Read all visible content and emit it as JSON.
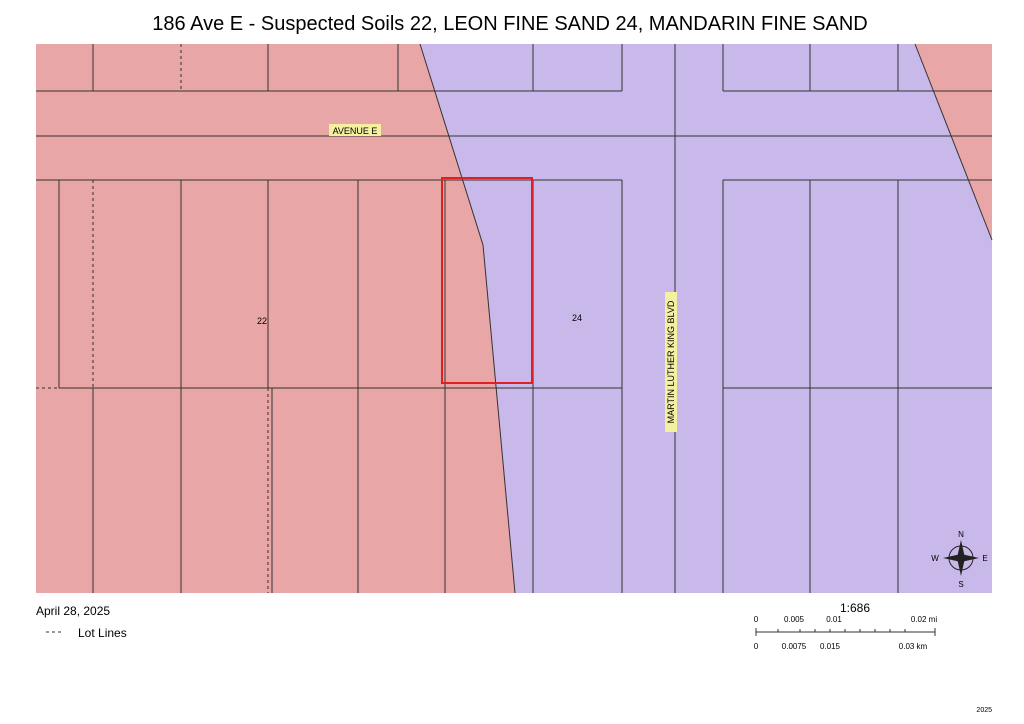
{
  "header": {
    "title": "186 Ave E - Suspected Soils 22, LEON FINE SAND 24, MANDARIN FINE SAND"
  },
  "map": {
    "streets": [
      "AVENUE E",
      "MARTIN LUTHER KING BLVD"
    ],
    "soil_labels": [
      "22",
      "24"
    ],
    "compass": [
      "N",
      "S",
      "E",
      "W"
    ]
  },
  "footer": {
    "date": "April 28, 2025",
    "legend": "Lot Lines",
    "scale": "1:686",
    "scale_mi": [
      "0",
      "0.005",
      "0.01",
      "0.02 mi"
    ],
    "scale_km": [
      "0",
      "0.0075",
      "0.015",
      "0.03 km"
    ],
    "corner": "2025"
  }
}
